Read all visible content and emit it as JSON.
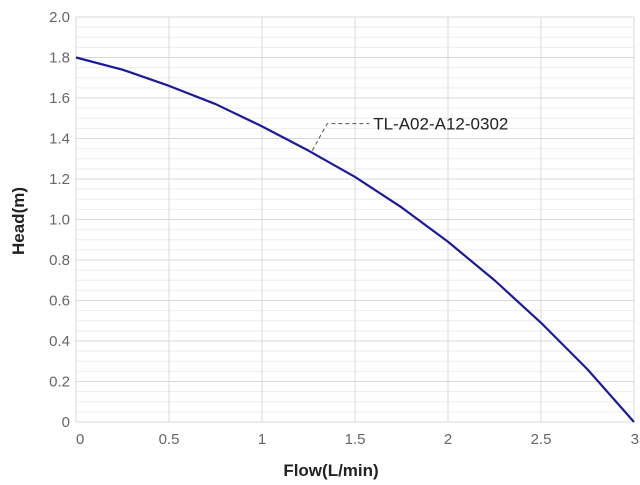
{
  "chart_data": {
    "type": "line",
    "title": "",
    "xlabel": "Flow(L/min)",
    "ylabel": "Head(m)",
    "xlim": [
      0,
      3
    ],
    "ylim": [
      0,
      2.0
    ],
    "x_ticks": [
      "0",
      "0.5",
      "1",
      "1.5",
      "2",
      "2.5",
      "3"
    ],
    "y_ticks": [
      "0",
      "0.2",
      "0.4",
      "0.6",
      "0.8",
      "1.0",
      "1.2",
      "1.4",
      "1.6",
      "1.8",
      "2.0"
    ],
    "grid": true,
    "series": [
      {
        "name": "TL-A02-A12-0302",
        "color": "#1a1a9a",
        "x": [
          0,
          0.25,
          0.5,
          0.75,
          1.0,
          1.25,
          1.5,
          1.75,
          2.0,
          2.25,
          2.5,
          2.75,
          3.0
        ],
        "y": [
          1.8,
          1.74,
          1.66,
          1.57,
          1.46,
          1.34,
          1.21,
          1.06,
          0.89,
          0.7,
          0.49,
          0.26,
          0.0
        ]
      }
    ],
    "annotations": [
      {
        "text": "TL-A02-A12-0302",
        "x": 1.27,
        "y": 1.34
      }
    ]
  }
}
